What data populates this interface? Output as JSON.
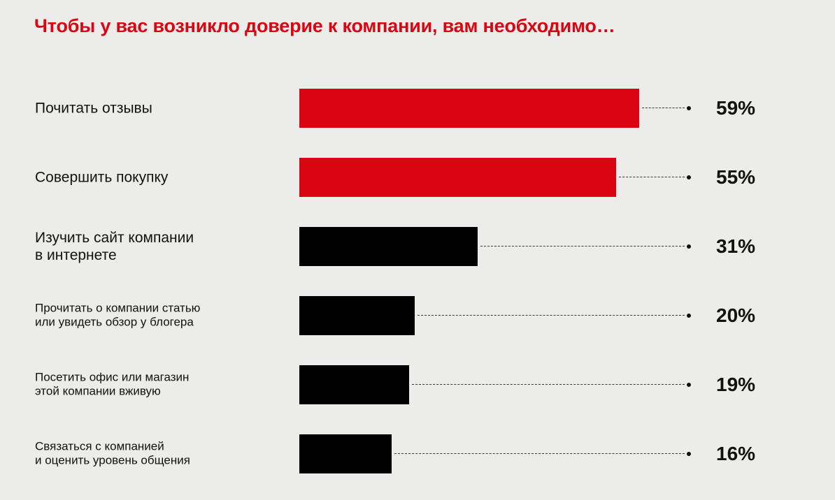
{
  "chart_data": {
    "type": "bar",
    "orientation": "horizontal",
    "title": "Чтобы у вас возникло доверие к компании, вам необходимо…",
    "categories": [
      "Почитать отзывы",
      "Совершить покупку",
      "Изучить сайт компании\nв интернете",
      "Прочитать о компании статью\nили увидеть обзор у блогера",
      "Посетить офис или магазин\nэтой компании вживую",
      "Связаться с компанией\nи оценить уровень общения"
    ],
    "values": [
      59,
      55,
      31,
      20,
      19,
      16
    ],
    "value_labels": [
      "59%",
      "55%",
      "31%",
      "20%",
      "19%",
      "16%"
    ],
    "bar_colors": [
      "#d90612",
      "#d90612",
      "#000000",
      "#000000",
      "#000000",
      "#000000"
    ],
    "accent_color": "#d90612",
    "grid": false,
    "legend": "none"
  }
}
